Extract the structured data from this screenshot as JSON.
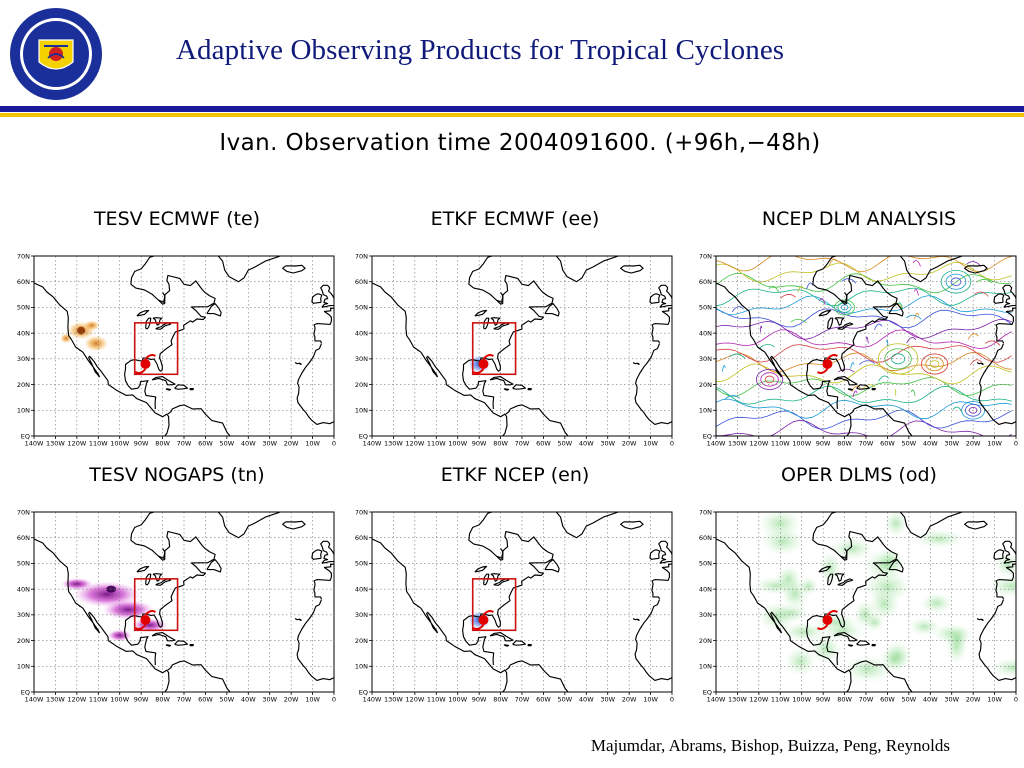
{
  "header": {
    "logo_lettering": [
      "NAVAL RESEARCH LABORATORY",
      "MONTEREY, CA"
    ],
    "title": "Adaptive Observing Products for Tropical Cyclones"
  },
  "observation_title": "Ivan. Observation time 2004091600. (+96h,−48h)",
  "map_axes": {
    "lat_labels": [
      "70N",
      "60N",
      "50N",
      "40N",
      "30N",
      "20N",
      "10N",
      "EQ"
    ],
    "lon_labels": [
      "140W",
      "130W",
      "120W",
      "110W",
      "100W",
      "90W",
      "80W",
      "70W",
      "60W",
      "50W",
      "40W",
      "30W",
      "20W",
      "10W",
      "0"
    ],
    "lat_range": [
      0,
      70
    ],
    "lon_range": [
      -140,
      0
    ]
  },
  "panels": [
    {
      "title": "TESV ECMWF (te)",
      "product": "tesv",
      "palette": "orange",
      "target_box": true
    },
    {
      "title": "ETKF ECMWF (ee)",
      "product": "etkf",
      "palette": "blue",
      "target_box": true
    },
    {
      "title": "NCEP DLM ANALYSIS",
      "product": "streamlines",
      "palette": "rainbow",
      "target_box": false
    },
    {
      "title": "TESV NOGAPS (tn)",
      "product": "tesv",
      "palette": "magenta",
      "target_box": true
    },
    {
      "title": "ETKF NCEP (en)",
      "product": "etkf",
      "palette": "blue",
      "target_box": true
    },
    {
      "title": "OPER DLMS (od)",
      "product": "oper",
      "palette": "green",
      "target_box": false
    }
  ],
  "storm": {
    "name": "Ivan",
    "lat": 28,
    "lon": -88
  },
  "target_area": {
    "lat_min": 24,
    "lat_max": 44,
    "lon_min": -93,
    "lon_max": -73
  },
  "colors": {
    "title": "#101a7a",
    "rule_blue": "#1a1a9a",
    "rule_gold": "#f2c200",
    "target_box": "#cc1111",
    "storm": "#e00000"
  },
  "footer": "Majumdar, Abrams, Bishop, Buizza, Peng, Reynolds"
}
